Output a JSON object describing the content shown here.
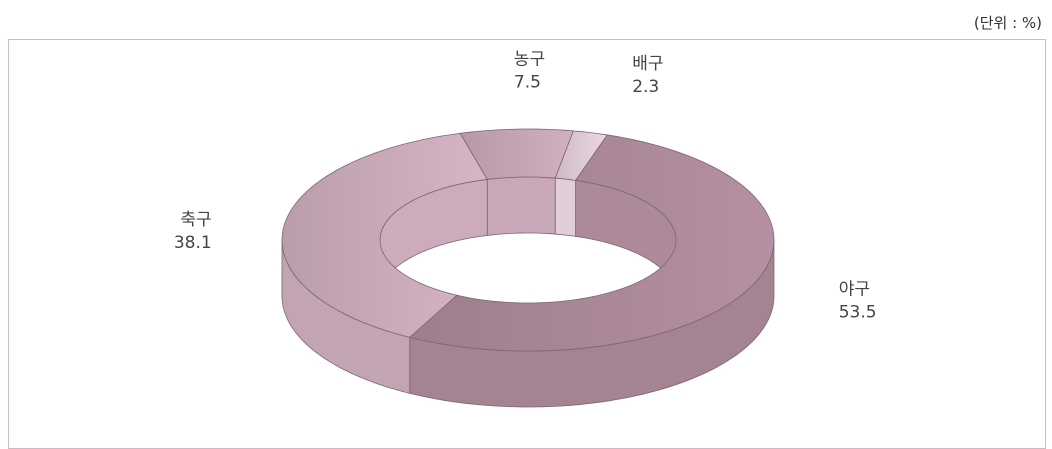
{
  "unit_label": "(단위 : %)",
  "chart_data": {
    "type": "pie",
    "variant": "3d-donut",
    "unit": "%",
    "slices": [
      {
        "name": "농구",
        "value": 7.5,
        "color": "#c4a4b4"
      },
      {
        "name": "배구",
        "value": 2.3,
        "color": "#ddc9d3"
      },
      {
        "name": "야구",
        "value": 53.5,
        "color": "#a98797"
      },
      {
        "name": "축구",
        "value": 38.1,
        "color": "#c8a9b8"
      }
    ]
  }
}
